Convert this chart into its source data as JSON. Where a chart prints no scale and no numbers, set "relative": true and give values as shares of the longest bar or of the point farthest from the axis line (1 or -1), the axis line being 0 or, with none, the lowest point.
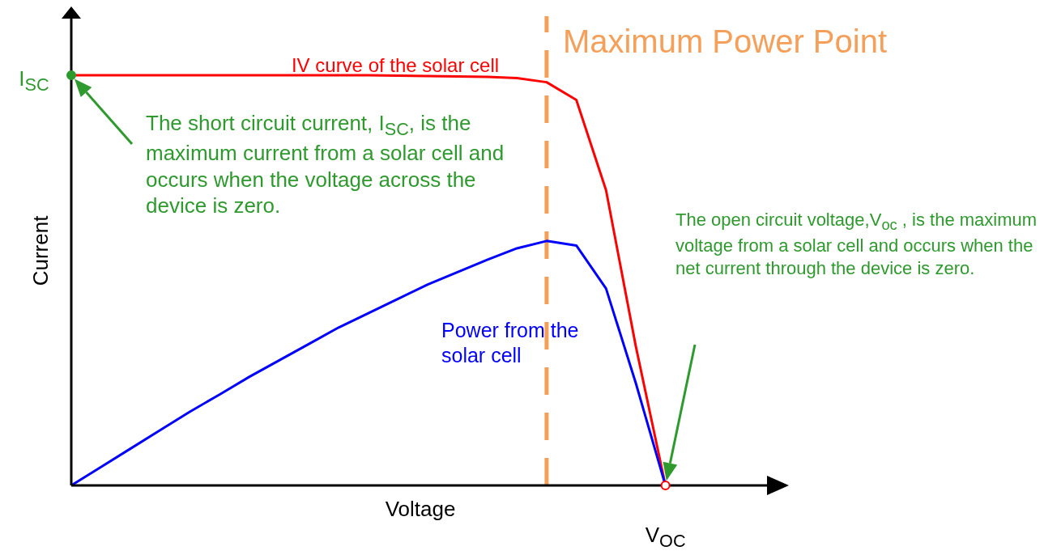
{
  "chart_data": {
    "type": "line",
    "relative": true,
    "xlabel": "Voltage",
    "ylabel": "Current",
    "categories": [
      null,
      null,
      null,
      null,
      null,
      null,
      null,
      null,
      null,
      null,
      null,
      null,
      null,
      null,
      null,
      null,
      null,
      null,
      null,
      null,
      null,
      null,
      null,
      null
    ],
    "series": [
      {
        "name": "IV curve of the solar cell",
        "color": "#ff0000",
        "values": [
          1,
          1,
          1,
          1,
          1,
          1,
          1,
          1,
          1,
          1,
          1,
          0.999,
          0.998,
          0.997,
          0.996,
          0.993,
          0.983,
          0.94,
          0.72,
          0.34,
          0,
          null,
          null,
          null
        ]
      },
      {
        "name": "Power from the solar cell",
        "color": "#0000ff",
        "values": [
          0,
          0.045,
          0.09,
          0.135,
          0.18,
          0.222,
          0.265,
          0.305,
          0.345,
          0.385,
          0.42,
          0.455,
          0.49,
          0.52,
          0.55,
          0.578,
          0.596,
          0.585,
          0.48,
          0.25,
          0,
          null,
          null,
          null
        ]
      }
    ],
    "annotations": [
      "Maximum Power Point",
      "I$_{SC}$",
      "V$_{OC}$",
      "The short circuit current, I$_{SC}$, is the maximum current from a solar cell and occurs when the voltage across the device is zero.",
      "The open circuit voltage,V$_{oc}$ , is the maximum voltage from a solar cell and occurs when the net current through the device is zero."
    ]
  }
}
